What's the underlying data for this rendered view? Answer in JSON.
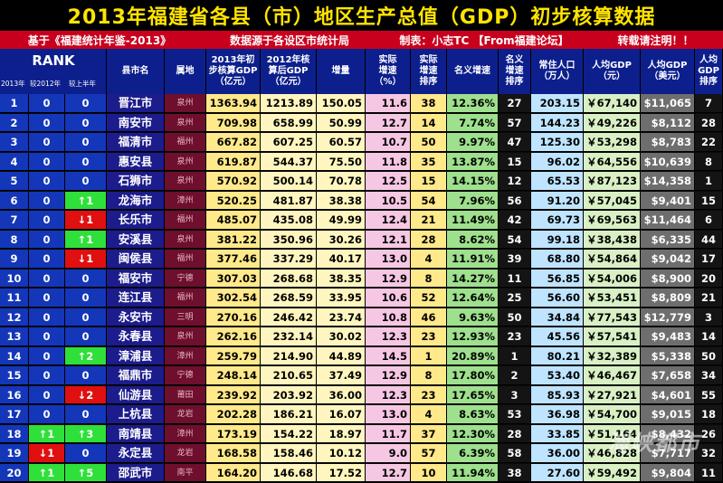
{
  "title": "2013年福建省各县（市）地区生产总值（GDP）初步核算数据",
  "subtitle": {
    "source": "基于《福建统计年鉴-2013》",
    "data_note": "数据源于各设区市统计局",
    "author": "制表：小志TC 【From福建论坛】",
    "reprint": "转载请注明！！"
  },
  "headers": {
    "rank": "RANK",
    "rank_2013": "2013年",
    "rank_vs2012": "较2012年",
    "rank_vs_h1": "较上半年",
    "county": "县市名",
    "prefecture": "属地",
    "gdp2013": "2013年初\n步核算GDP\n（亿元）",
    "gdp2012": "2012年核\n算后GDP\n（亿元）",
    "increase": "增量",
    "real_growth": "实际\n增速\n（%）",
    "real_growth_rank": "实际\n增速\n排序",
    "nominal_growth": "名义增速",
    "nominal_growth_rank": "名义\n增速\n排序",
    "population": "常住人口\n（万人）",
    "per_capita_cny": "人均GDP\n（元）",
    "per_capita_usd": "人均GDP\n（美元）",
    "per_capita_rank": "人均\nGDP\n排序"
  },
  "rows": [
    {
      "rank": "1",
      "vs2012": "0",
      "vsh1": "0",
      "name": "晋江市",
      "pref": "泉州",
      "gdp2013": "1363.94",
      "gdp2012": "1213.89",
      "inc": "150.05",
      "rg": "11.6",
      "rgr": "38",
      "ng": "12.36%",
      "ngr": "27",
      "pop": "203.15",
      "pc": "￥67,140",
      "usd": "$11,065",
      "pcr": "7"
    },
    {
      "rank": "2",
      "vs2012": "0",
      "vsh1": "0",
      "name": "南安市",
      "pref": "泉州",
      "gdp2013": "709.98",
      "gdp2012": "658.99",
      "inc": "50.99",
      "rg": "12.7",
      "rgr": "14",
      "ng": "7.74%",
      "ngr": "57",
      "pop": "144.23",
      "pc": "￥49,226",
      "usd": "$8,112",
      "pcr": "28"
    },
    {
      "rank": "3",
      "vs2012": "0",
      "vsh1": "0",
      "name": "福清市",
      "pref": "福州",
      "gdp2013": "667.82",
      "gdp2012": "607.25",
      "inc": "60.57",
      "rg": "10.7",
      "rgr": "50",
      "ng": "9.97%",
      "ngr": "47",
      "pop": "125.30",
      "pc": "￥53,298",
      "usd": "$8,783",
      "pcr": "22"
    },
    {
      "rank": "4",
      "vs2012": "0",
      "vsh1": "0",
      "name": "惠安县",
      "pref": "泉州",
      "gdp2013": "619.87",
      "gdp2012": "544.37",
      "inc": "75.50",
      "rg": "11.8",
      "rgr": "35",
      "ng": "13.87%",
      "ngr": "15",
      "pop": "96.02",
      "pc": "￥64,556",
      "usd": "$10,639",
      "pcr": "8"
    },
    {
      "rank": "5",
      "vs2012": "0",
      "vsh1": "0",
      "name": "石狮市",
      "pref": "泉州",
      "gdp2013": "570.92",
      "gdp2012": "500.14",
      "inc": "70.78",
      "rg": "12.5",
      "rgr": "15",
      "ng": "14.15%",
      "ngr": "12",
      "pop": "65.53",
      "pc": "￥87,123",
      "usd": "$14,358",
      "pcr": "1"
    },
    {
      "rank": "6",
      "vs2012": "0",
      "vsh1": "↑1",
      "name": "龙海市",
      "pref": "漳州",
      "gdp2013": "520.25",
      "gdp2012": "481.87",
      "inc": "38.38",
      "rg": "10.5",
      "rgr": "54",
      "ng": "7.96%",
      "ngr": "56",
      "pop": "91.20",
      "pc": "￥57,045",
      "usd": "$9,401",
      "pcr": "15"
    },
    {
      "rank": "7",
      "vs2012": "0",
      "vsh1": "↓1",
      "name": "长乐市",
      "pref": "福州",
      "gdp2013": "485.07",
      "gdp2012": "435.08",
      "inc": "49.99",
      "rg": "12.4",
      "rgr": "21",
      "ng": "11.49%",
      "ngr": "42",
      "pop": "69.73",
      "pc": "￥69,563",
      "usd": "$11,464",
      "pcr": "6"
    },
    {
      "rank": "8",
      "vs2012": "0",
      "vsh1": "↑1",
      "name": "安溪县",
      "pref": "泉州",
      "gdp2013": "381.22",
      "gdp2012": "350.96",
      "inc": "30.26",
      "rg": "12.1",
      "rgr": "28",
      "ng": "8.62%",
      "ngr": "54",
      "pop": "99.18",
      "pc": "￥38,438",
      "usd": "$6,335",
      "pcr": "44"
    },
    {
      "rank": "9",
      "vs2012": "0",
      "vsh1": "↓1",
      "name": "闽侯县",
      "pref": "福州",
      "gdp2013": "377.46",
      "gdp2012": "337.29",
      "inc": "40.17",
      "rg": "13.0",
      "rgr": "4",
      "ng": "11.91%",
      "ngr": "39",
      "pop": "68.80",
      "pc": "￥54,864",
      "usd": "$9,042",
      "pcr": "17"
    },
    {
      "rank": "10",
      "vs2012": "0",
      "vsh1": "0",
      "name": "福安市",
      "pref": "宁德",
      "gdp2013": "307.03",
      "gdp2012": "268.68",
      "inc": "38.35",
      "rg": "12.9",
      "rgr": "8",
      "ng": "14.27%",
      "ngr": "11",
      "pop": "56.85",
      "pc": "￥54,006",
      "usd": "$8,900",
      "pcr": "20"
    },
    {
      "rank": "11",
      "vs2012": "0",
      "vsh1": "0",
      "name": "连江县",
      "pref": "福州",
      "gdp2013": "302.54",
      "gdp2012": "268.59",
      "inc": "33.95",
      "rg": "10.6",
      "rgr": "52",
      "ng": "12.64%",
      "ngr": "25",
      "pop": "56.60",
      "pc": "￥53,451",
      "usd": "$8,809",
      "pcr": "21"
    },
    {
      "rank": "12",
      "vs2012": "0",
      "vsh1": "0",
      "name": "永安市",
      "pref": "三明",
      "gdp2013": "270.16",
      "gdp2012": "246.42",
      "inc": "23.74",
      "rg": "10.8",
      "rgr": "46",
      "ng": "9.63%",
      "ngr": "50",
      "pop": "34.84",
      "pc": "￥77,543",
      "usd": "$12,779",
      "pcr": "3"
    },
    {
      "rank": "13",
      "vs2012": "0",
      "vsh1": "0",
      "name": "永春县",
      "pref": "泉州",
      "gdp2013": "262.16",
      "gdp2012": "232.14",
      "inc": "30.02",
      "rg": "12.3",
      "rgr": "23",
      "ng": "12.93%",
      "ngr": "23",
      "pop": "45.56",
      "pc": "￥57,541",
      "usd": "$9,483",
      "pcr": "14"
    },
    {
      "rank": "14",
      "vs2012": "0",
      "vsh1": "↑2",
      "name": "漳浦县",
      "pref": "漳州",
      "gdp2013": "259.79",
      "gdp2012": "214.90",
      "inc": "44.89",
      "rg": "14.5",
      "rgr": "1",
      "ng": "20.89%",
      "ngr": "1",
      "pop": "80.21",
      "pc": "￥32,389",
      "usd": "$5,338",
      "pcr": "50"
    },
    {
      "rank": "15",
      "vs2012": "0",
      "vsh1": "0",
      "name": "福鼎市",
      "pref": "宁德",
      "gdp2013": "248.14",
      "gdp2012": "210.65",
      "inc": "37.49",
      "rg": "12.9",
      "rgr": "8",
      "ng": "17.80%",
      "ngr": "2",
      "pop": "53.40",
      "pc": "￥46,467",
      "usd": "$7,658",
      "pcr": "34"
    },
    {
      "rank": "16",
      "vs2012": "0",
      "vsh1": "↓2",
      "name": "仙游县",
      "pref": "莆田",
      "gdp2013": "239.92",
      "gdp2012": "203.92",
      "inc": "36.00",
      "rg": "12.3",
      "rgr": "23",
      "ng": "17.65%",
      "ngr": "3",
      "pop": "85.93",
      "pc": "￥27,921",
      "usd": "$4,601",
      "pcr": "55"
    },
    {
      "rank": "17",
      "vs2012": "0",
      "vsh1": "0",
      "name": "上杭县",
      "pref": "龙岩",
      "gdp2013": "202.28",
      "gdp2012": "186.21",
      "inc": "16.07",
      "rg": "13.0",
      "rgr": "4",
      "ng": "8.63%",
      "ngr": "53",
      "pop": "36.98",
      "pc": "￥54,700",
      "usd": "$9,015",
      "pcr": "18"
    },
    {
      "rank": "18",
      "vs2012": "↑1",
      "vsh1": "↑3",
      "name": "南靖县",
      "pref": "漳州",
      "gdp2013": "173.19",
      "gdp2012": "154.22",
      "inc": "18.97",
      "rg": "11.7",
      "rgr": "37",
      "ng": "12.30%",
      "ngr": "28",
      "pop": "33.85",
      "pc": "￥51,164",
      "usd": "$8,432",
      "pcr": "26"
    },
    {
      "rank": "19",
      "vs2012": "↓1",
      "vsh1": "0",
      "name": "永定县",
      "pref": "龙岩",
      "gdp2013": "168.58",
      "gdp2012": "158.46",
      "inc": "10.12",
      "rg": "9.0",
      "rgr": "57",
      "ng": "6.39%",
      "ngr": "58",
      "pop": "36.00",
      "pc": "￥46,828",
      "usd": "$7,717",
      "pcr": "32"
    },
    {
      "rank": "20",
      "vs2012": "↑1",
      "vsh1": "↑5",
      "name": "邵武市",
      "pref": "南平",
      "gdp2013": "164.20",
      "gdp2012": "146.68",
      "inc": "17.52",
      "rg": "12.7",
      "rgr": "10",
      "ng": "11.94%",
      "ngr": "38",
      "pop": "27.60",
      "pc": "￥59,492",
      "usd": "$9,804",
      "pcr": "11"
    }
  ],
  "watermark": "海峡都市",
  "colors": {
    "title": "#ffe400",
    "header": "#0d1f8c",
    "banner": "#c8001e",
    "up": "#2fe03a",
    "down": "#e01010"
  }
}
